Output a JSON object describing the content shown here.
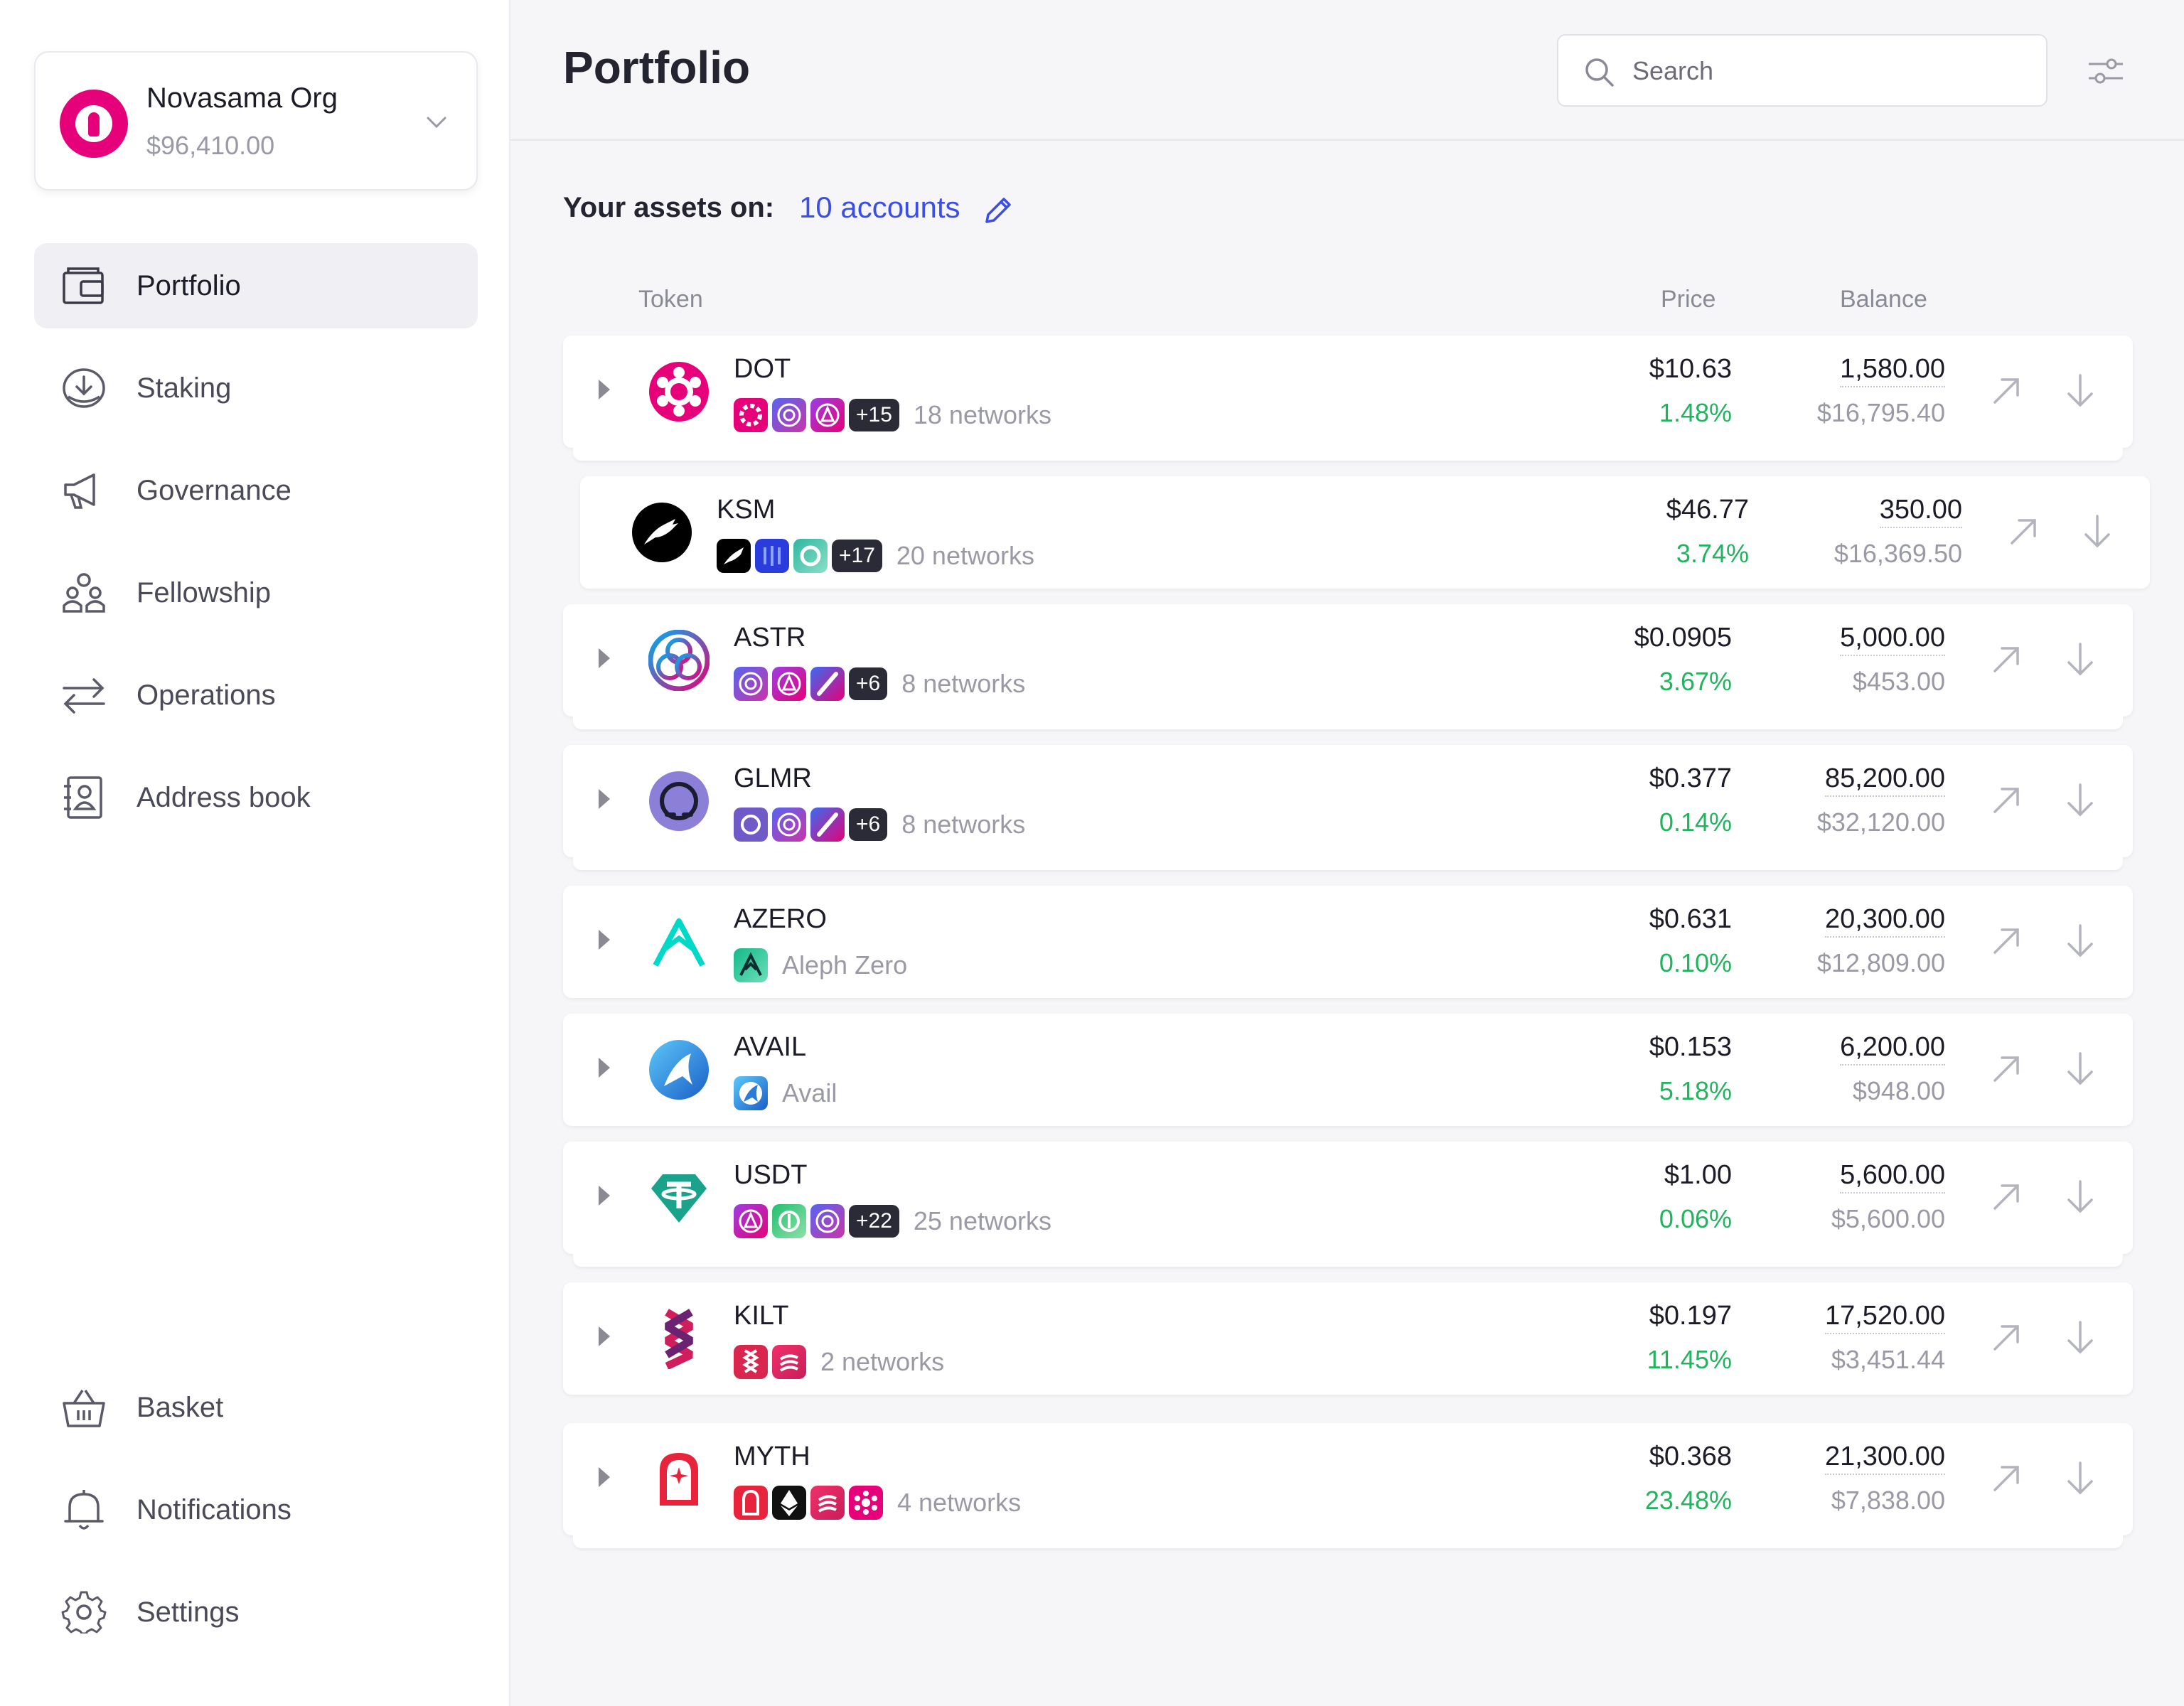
{
  "org": {
    "name": "Novasama Org",
    "balance": "$96,410.00"
  },
  "nav": {
    "portfolio": "Portfolio",
    "staking": "Staking",
    "governance": "Governance",
    "fellowship": "Fellowship",
    "operations": "Operations",
    "address_book": "Address book",
    "basket": "Basket",
    "notifications": "Notifications",
    "settings": "Settings"
  },
  "header": {
    "title": "Portfolio",
    "search_placeholder": "Search"
  },
  "assets": {
    "prefix": "Your assets on:",
    "accounts": "10 accounts"
  },
  "columns": {
    "token": "Token",
    "price": "Price",
    "balance": "Balance"
  },
  "rows": [
    {
      "symbol": "DOT",
      "more": "+15",
      "networks": "18 networks",
      "price": "$10.63",
      "change": "1.48%",
      "balance": "1,580.00",
      "fiat": "$16,795.40"
    },
    {
      "symbol": "KSM",
      "more": "+17",
      "networks": "20 networks",
      "price": "$46.77",
      "change": "3.74%",
      "balance": "350.00",
      "fiat": "$16,369.50"
    },
    {
      "symbol": "ASTR",
      "more": "+6",
      "networks": "8 networks",
      "price": "$0.0905",
      "change": "3.67%",
      "balance": "5,000.00",
      "fiat": "$453.00"
    },
    {
      "symbol": "GLMR",
      "more": "+6",
      "networks": "8 networks",
      "price": "$0.377",
      "change": "0.14%",
      "balance": "85,200.00",
      "fiat": "$32,120.00"
    },
    {
      "symbol": "AZERO",
      "networks": "Aleph Zero",
      "price": "$0.631",
      "change": "0.10%",
      "balance": "20,300.00",
      "fiat": "$12,809.00"
    },
    {
      "symbol": "AVAIL",
      "networks": "Avail",
      "price": "$0.153",
      "change": "5.18%",
      "balance": "6,200.00",
      "fiat": "$948.00"
    },
    {
      "symbol": "USDT",
      "more": "+22",
      "networks": "25 networks",
      "price": "$1.00",
      "change": "0.06%",
      "balance": "5,600.00",
      "fiat": "$5,600.00"
    },
    {
      "symbol": "KILT",
      "networks": "2 networks",
      "price": "$0.197",
      "change": "11.45%",
      "balance": "17,520.00",
      "fiat": "$3,451.44"
    },
    {
      "symbol": "MYTH",
      "networks": "4 networks",
      "price": "$0.368",
      "change": "23.48%",
      "balance": "21,300.00",
      "fiat": "$7,838.00"
    }
  ],
  "colors": {
    "accent": "#3b4ee6",
    "positive": "#22b35e",
    "polkadot": "#e6007a"
  }
}
